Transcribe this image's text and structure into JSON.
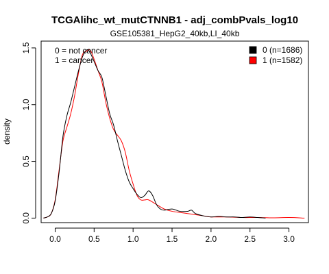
{
  "chart_data": {
    "type": "line",
    "title": "TCGAlihc_wt_mutCTNNB1 - adj_combPvals_log10",
    "subtitle": "GSE105381_HepG2_40kb,LI_40kb",
    "xlabel": "",
    "ylabel": "density",
    "xlim": [
      -0.18,
      3.25
    ],
    "ylim": [
      -0.04,
      1.56
    ],
    "xticks": [
      0.0,
      0.5,
      1.0,
      1.5,
      2.0,
      2.5,
      3.0
    ],
    "xtick_labels": [
      "0.0",
      "0.5",
      "1.0",
      "1.5",
      "2.0",
      "2.5",
      "3.0"
    ],
    "yticks": [
      0.0,
      0.5,
      1.0,
      1.5
    ],
    "ytick_labels": [
      "0.0",
      "0.5",
      "1.0",
      "1.5"
    ],
    "annotations": [
      "0 = not cancer",
      "1 = cancer"
    ],
    "legend_position": "top-right",
    "series": [
      {
        "name": "0 (n=1686)",
        "color": "#000000",
        "x": [
          -0.15,
          -0.1,
          -0.05,
          0.0,
          0.05,
          0.1,
          0.15,
          0.2,
          0.25,
          0.3,
          0.35,
          0.4,
          0.44,
          0.5,
          0.55,
          0.6,
          0.65,
          0.7,
          0.75,
          0.8,
          0.85,
          0.9,
          0.95,
          1.0,
          1.05,
          1.1,
          1.15,
          1.2,
          1.25,
          1.3,
          1.35,
          1.4,
          1.5,
          1.6,
          1.7,
          1.75,
          1.8,
          1.9,
          2.0,
          2.1,
          2.2,
          2.3,
          2.4,
          2.5,
          2.6,
          2.7
        ],
        "y": [
          0.0,
          0.01,
          0.04,
          0.15,
          0.4,
          0.72,
          0.9,
          1.02,
          1.16,
          1.3,
          1.42,
          1.48,
          1.47,
          1.38,
          1.3,
          1.24,
          1.08,
          0.92,
          0.82,
          0.68,
          0.55,
          0.42,
          0.32,
          0.26,
          0.21,
          0.18,
          0.2,
          0.24,
          0.2,
          0.12,
          0.08,
          0.07,
          0.08,
          0.06,
          0.06,
          0.07,
          0.04,
          0.02,
          0.01,
          0.015,
          0.01,
          0.01,
          0.005,
          0.01,
          0.005,
          0.0
        ]
      },
      {
        "name": "1 (n=1582)",
        "color": "#ff0000",
        "x": [
          -0.15,
          -0.1,
          -0.05,
          0.0,
          0.05,
          0.1,
          0.15,
          0.2,
          0.25,
          0.3,
          0.35,
          0.4,
          0.45,
          0.5,
          0.55,
          0.6,
          0.65,
          0.7,
          0.75,
          0.8,
          0.85,
          0.9,
          0.95,
          1.0,
          1.05,
          1.1,
          1.15,
          1.2,
          1.3,
          1.4,
          1.5,
          1.6,
          1.7,
          1.8,
          1.9,
          2.0,
          2.2,
          2.4,
          2.6,
          2.8,
          3.0,
          3.2
        ],
        "y": [
          0.0,
          0.01,
          0.04,
          0.16,
          0.42,
          0.68,
          0.8,
          0.92,
          1.08,
          1.28,
          1.44,
          1.47,
          1.48,
          1.4,
          1.3,
          1.2,
          1.02,
          0.88,
          0.78,
          0.73,
          0.68,
          0.58,
          0.42,
          0.3,
          0.2,
          0.16,
          0.16,
          0.16,
          0.12,
          0.08,
          0.06,
          0.05,
          0.04,
          0.03,
          0.02,
          0.01,
          0.01,
          0.005,
          0.005,
          0.002,
          0.005,
          0.0
        ]
      }
    ]
  }
}
